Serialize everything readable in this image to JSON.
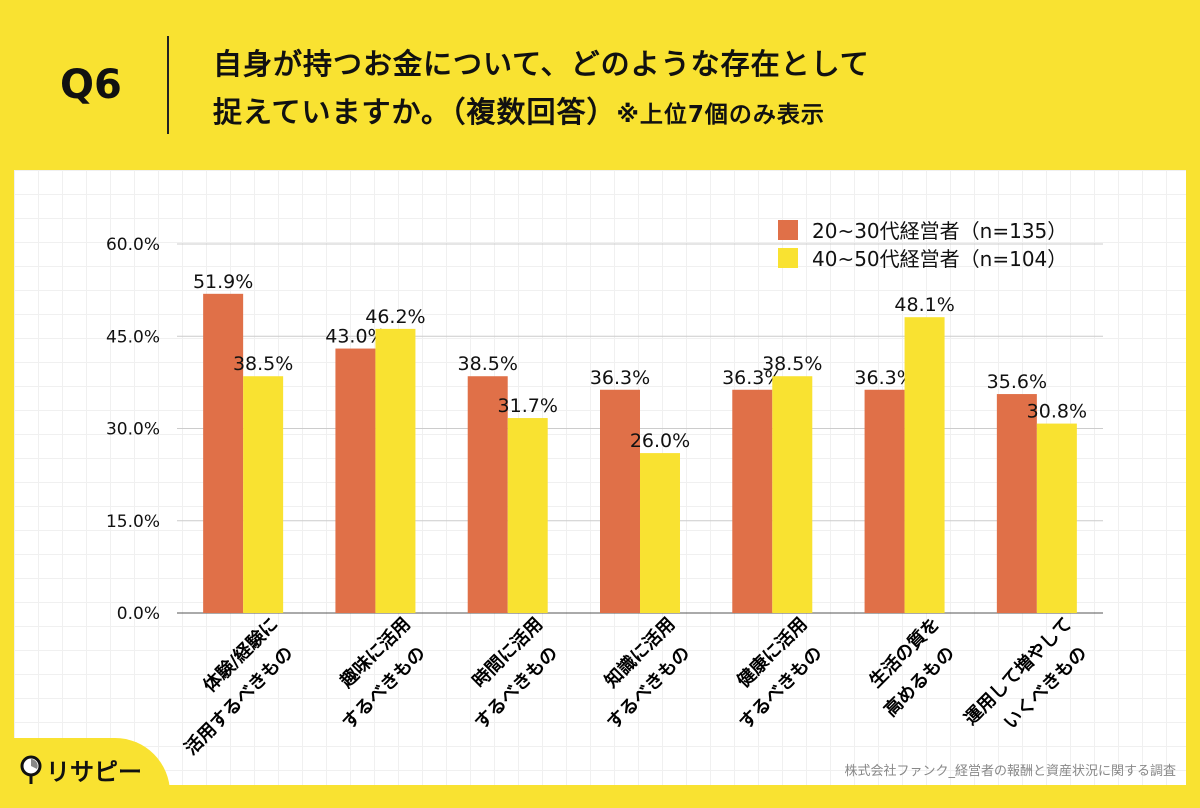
{
  "header": {
    "question": "Q6",
    "title_line1": "自身が持つお金について、どのような存在として",
    "title_line2": "捉えていますか。（複数回答）",
    "note": "※上位7個のみ表示"
  },
  "footer": {
    "logo": "リサピー",
    "source": "株式会社ファンク_経営者の報酬と資産状況に関する調査"
  },
  "chart_data": {
    "type": "bar",
    "categories": [
      [
        "体験/経験に",
        "活用するべきもの"
      ],
      [
        "趣味に活用",
        "するべきもの"
      ],
      [
        "時間に活用",
        "するべきもの"
      ],
      [
        "知識に活用",
        "するべきもの"
      ],
      [
        "健康に活用",
        "するべきもの"
      ],
      [
        "生活の質を",
        "高めるもの"
      ],
      [
        "運用して増やして",
        "いくべきもの"
      ]
    ],
    "series": [
      {
        "name": "20~30代経営者（n=135）",
        "color": "#E07048",
        "values": [
          51.9,
          43.0,
          38.5,
          36.3,
          36.3,
          36.3,
          35.6
        ]
      },
      {
        "name": "40~50代経営者（n=104）",
        "color": "#F9E231",
        "values": [
          38.5,
          46.2,
          31.7,
          26.0,
          38.5,
          48.1,
          30.8
        ]
      }
    ],
    "yticks": [
      "0.0%",
      "15.0%",
      "30.0%",
      "45.0%",
      "60.0%"
    ],
    "ylim": [
      0,
      60
    ],
    "grid": true,
    "legend": "top-right"
  }
}
